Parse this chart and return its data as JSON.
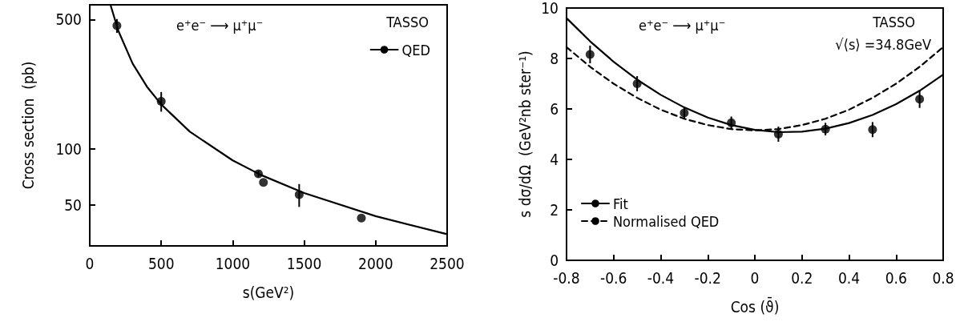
{
  "chart_data": [
    {
      "type": "scatter",
      "xlabel": "s(GeV²)",
      "ylabel": "Cross section  (pb)",
      "log": "y",
      "grid": false,
      "legend": "top right",
      "xlim": [
        0,
        2500
      ],
      "xticks": [
        0,
        500,
        1000,
        1500,
        2000,
        2500
      ],
      "ylim": [
        30,
        600
      ],
      "yticks": [
        50,
        100,
        500
      ],
      "annotations": [
        "e⁺e⁻ ⟶ μ⁺μ⁻",
        "TASSO"
      ],
      "series": [
        {
          "type": "scatter",
          "color": "#000000",
          "marker": "circle",
          "x": [
            190,
            500,
            1180,
            1215,
            1465,
            1900
          ],
          "values": [
            463,
            181,
            73.5,
            66,
            56.7,
            42.4
          ],
          "errors": [
            40,
            22,
            3,
            null,
            8,
            null
          ]
        },
        {
          "type": "line",
          "name": "QED",
          "color": "#000000",
          "marker": "none",
          "line_style": "solid",
          "x": [
            145,
            200,
            300,
            400,
            500,
            700,
            1000,
            1200,
            1500,
            2000,
            2500
          ],
          "values": [
            600,
            434,
            289,
            217,
            174,
            124,
            86.8,
            72.3,
            57.9,
            43.4,
            34.7
          ]
        }
      ]
    },
    {
      "type": "scatter",
      "xlabel": "Cos (ϑ̄)",
      "ylabel": "s dσ/dΩ  (GeV²nb ster⁻¹)",
      "grid": false,
      "legend": "bottom left",
      "xlim": [
        -0.8,
        0.8
      ],
      "xticks": [
        -0.8,
        -0.6,
        -0.4,
        -0.2,
        0,
        0.2,
        0.4,
        0.6,
        0.8
      ],
      "ylim": [
        0,
        10
      ],
      "yticks": [
        0,
        2,
        4,
        6,
        8,
        10
      ],
      "annotations": [
        "e⁺e⁻ ⟶ μ⁺μ⁻",
        "TASSO",
        "√⟨s⟩ =34.8GeV"
      ],
      "series": [
        {
          "type": "scatter",
          "color": "#000000",
          "marker": "circle",
          "x": [
            -0.7,
            -0.5,
            -0.3,
            -0.1,
            0.1,
            0.3,
            0.5,
            0.7
          ],
          "values": [
            8.16,
            7.0,
            5.84,
            5.45,
            5.0,
            5.2,
            5.18,
            6.39
          ],
          "errors": [
            0.35,
            0.3,
            0.25,
            0.25,
            0.3,
            0.25,
            0.3,
            0.35
          ]
        },
        {
          "type": "line",
          "name": "Fit",
          "color": "#000000",
          "marker": "none",
          "line_style": "solid",
          "x": [
            -0.8,
            -0.7,
            -0.6,
            -0.5,
            -0.4,
            -0.3,
            -0.2,
            -0.1,
            0,
            0.1,
            0.2,
            0.3,
            0.4,
            0.5,
            0.6,
            0.7,
            0.8
          ],
          "values": [
            9.6,
            8.68,
            7.87,
            7.16,
            6.56,
            6.06,
            5.66,
            5.36,
            5.17,
            5.08,
            5.1,
            5.22,
            5.44,
            5.76,
            6.19,
            6.72,
            7.36
          ]
        },
        {
          "type": "line",
          "name": "Normalised QED",
          "color": "#000000",
          "marker": "none",
          "line_style": "dashed",
          "x": [
            -0.8,
            -0.7,
            -0.6,
            -0.5,
            -0.4,
            -0.3,
            -0.2,
            -0.1,
            0,
            0.1,
            0.2,
            0.3,
            0.4,
            0.5,
            0.6,
            0.7,
            0.8
          ],
          "values": [
            8.45,
            7.67,
            7.0,
            6.44,
            5.97,
            5.61,
            5.36,
            5.2,
            5.15,
            5.2,
            5.36,
            5.61,
            5.97,
            6.44,
            7.0,
            7.67,
            8.45
          ]
        }
      ]
    }
  ]
}
